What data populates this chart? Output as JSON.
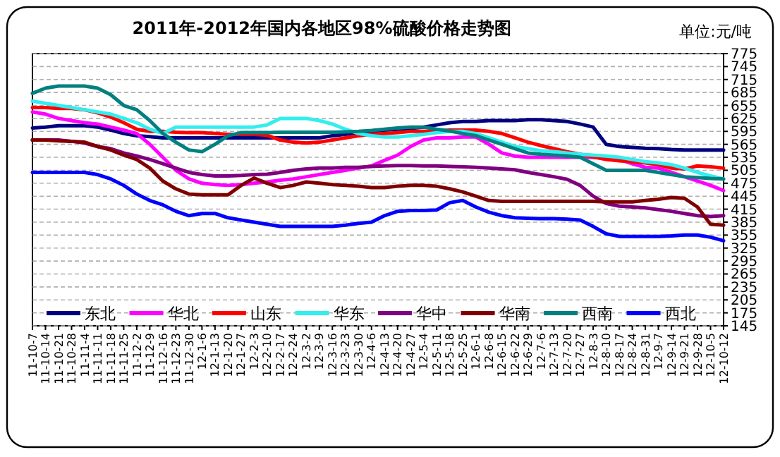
{
  "chart_data": {
    "type": "line",
    "title": "2011年-2012年国内各地区98%硫酸价格走势图",
    "annotations": [
      "单位:元/吨"
    ],
    "categories": [
      "11-10-7",
      "11-10-14",
      "11-10-21",
      "11-10-28",
      "11-11-4",
      "11-11-11",
      "11-11-18",
      "11-11-25",
      "11-12-2",
      "11-12-9",
      "11-12-16",
      "11-12-23",
      "11-12-30",
      "12-1-6",
      "12-1-13",
      "12-1-20",
      "12-1-27",
      "12-2-3",
      "12-2-10",
      "12-2-17",
      "12-2-24",
      "12-3-2",
      "12-3-9",
      "12-3-16",
      "12-3-23",
      "12-3-30",
      "12-4-6",
      "12-4-13",
      "12-4-20",
      "12-4-27",
      "12-5-4",
      "12-5-11",
      "12-5-18",
      "12-5-25",
      "12-6-1",
      "12-6-8",
      "12-6-15",
      "12-6-22",
      "12-6-29",
      "12-7-6",
      "12-7-13",
      "12-7-20",
      "12-7-27",
      "12-8-3",
      "12-8-10",
      "12-8-17",
      "12-8-24",
      "12-8-31",
      "12-9-7",
      "12-9-14",
      "12-9-21",
      "12-9-28",
      "12-10-5",
      "12-10-12"
    ],
    "series": [
      {
        "name": "东北",
        "color": "#000080",
        "values": [
          603,
          605,
          608,
          608,
          608,
          605,
          598,
          590,
          585,
          583,
          580,
          580,
          580,
          580,
          580,
          580,
          580,
          580,
          580,
          580,
          580,
          580,
          580,
          585,
          588,
          592,
          595,
          598,
          600,
          602,
          605,
          610,
          615,
          618,
          618,
          620,
          620,
          620,
          622,
          622,
          620,
          618,
          612,
          605,
          565,
          560,
          558,
          556,
          555,
          553,
          552,
          552,
          552,
          552
        ]
      },
      {
        "name": "华北",
        "color": "#ff00ff",
        "values": [
          640,
          635,
          625,
          620,
          615,
          612,
          605,
          598,
          590,
          565,
          535,
          505,
          485,
          475,
          472,
          470,
          472,
          475,
          478,
          482,
          485,
          490,
          495,
          500,
          505,
          510,
          515,
          528,
          540,
          560,
          575,
          580,
          580,
          582,
          582,
          565,
          545,
          538,
          535,
          535,
          535,
          535,
          535,
          535,
          533,
          530,
          520,
          512,
          510,
          500,
          490,
          480,
          470,
          458
        ]
      },
      {
        "name": "山东",
        "color": "#ff0000",
        "values": [
          650,
          650,
          648,
          648,
          645,
          638,
          628,
          615,
          600,
          595,
          595,
          593,
          592,
          592,
          590,
          588,
          588,
          588,
          586,
          575,
          570,
          568,
          570,
          575,
          580,
          585,
          588,
          590,
          592,
          595,
          595,
          596,
          598,
          598,
          598,
          595,
          590,
          580,
          570,
          562,
          555,
          548,
          542,
          536,
          530,
          527,
          525,
          522,
          518,
          510,
          508,
          515,
          513,
          510
        ]
      },
      {
        "name": "华东",
        "color": "#33eeee",
        "values": [
          665,
          660,
          655,
          650,
          645,
          640,
          635,
          625,
          615,
          600,
          590,
          605,
          605,
          605,
          605,
          605,
          605,
          605,
          610,
          625,
          625,
          625,
          620,
          612,
          600,
          590,
          585,
          582,
          582,
          585,
          588,
          592,
          595,
          595,
          590,
          580,
          570,
          560,
          555,
          550,
          548,
          545,
          542,
          540,
          538,
          535,
          530,
          525,
          522,
          518,
          510,
          500,
          492,
          485
        ]
      },
      {
        "name": "华中",
        "color": "#800080",
        "values": [
          575,
          575,
          575,
          572,
          568,
          560,
          555,
          545,
          538,
          530,
          520,
          510,
          500,
          495,
          492,
          492,
          493,
          495,
          496,
          500,
          505,
          508,
          510,
          510,
          512,
          512,
          514,
          515,
          516,
          516,
          515,
          515,
          514,
          513,
          512,
          510,
          508,
          506,
          500,
          495,
          490,
          484,
          470,
          445,
          428,
          422,
          420,
          418,
          414,
          410,
          405,
          400,
          398,
          400
        ]
      },
      {
        "name": "华南",
        "color": "#800000",
        "values": [
          575,
          575,
          573,
          572,
          570,
          560,
          552,
          540,
          530,
          510,
          480,
          462,
          450,
          448,
          448,
          448,
          470,
          487,
          475,
          465,
          470,
          478,
          475,
          472,
          470,
          468,
          465,
          465,
          468,
          470,
          470,
          468,
          462,
          455,
          445,
          435,
          433,
          433,
          433,
          433,
          433,
          433,
          433,
          433,
          432,
          432,
          432,
          435,
          438,
          442,
          440,
          420,
          380,
          378
        ]
      },
      {
        "name": "西南",
        "color": "#008080",
        "values": [
          683,
          695,
          700,
          700,
          700,
          695,
          680,
          655,
          645,
          620,
          590,
          570,
          552,
          548,
          565,
          585,
          592,
          592,
          592,
          593,
          593,
          593,
          593,
          593,
          594,
          595,
          597,
          600,
          603,
          605,
          605,
          600,
          596,
          590,
          585,
          575,
          565,
          555,
          545,
          542,
          540,
          538,
          535,
          520,
          505,
          505,
          505,
          505,
          500,
          495,
          490,
          488,
          486,
          485
        ]
      },
      {
        "name": "西北",
        "color": "#0000ff",
        "values": [
          500,
          500,
          500,
          500,
          500,
          495,
          485,
          470,
          450,
          435,
          425,
          410,
          400,
          405,
          405,
          395,
          390,
          385,
          380,
          375,
          375,
          375,
          375,
          375,
          378,
          382,
          385,
          400,
          410,
          412,
          412,
          413,
          430,
          435,
          420,
          408,
          400,
          395,
          394,
          393,
          393,
          392,
          390,
          375,
          358,
          352,
          352,
          352,
          352,
          353,
          355,
          355,
          350,
          342
        ]
      }
    ],
    "ylim": [
      145,
      775
    ],
    "yticks": [
      145,
      175,
      205,
      235,
      265,
      295,
      325,
      355,
      385,
      415,
      445,
      475,
      505,
      535,
      565,
      595,
      625,
      655,
      685,
      715,
      745,
      775
    ],
    "grid": "y",
    "legend": "bottom",
    "marker": "none",
    "line_style": "solid"
  }
}
